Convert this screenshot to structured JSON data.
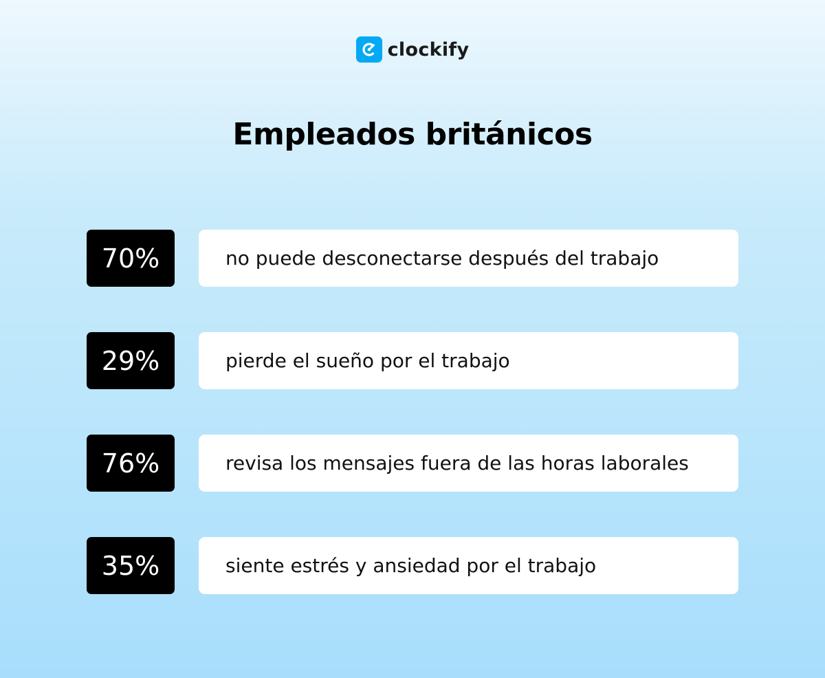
{
  "brand": {
    "name": "clockify",
    "color": "#03a9f4"
  },
  "headline": "Empleados británicos",
  "stats": [
    {
      "value": "70%",
      "text": "no puede desconectarse después del trabajo"
    },
    {
      "value": "29%",
      "text": "pierde el sueño por el trabajo"
    },
    {
      "value": "76%",
      "text": "revisa los mensajes fuera de las horas laborales"
    },
    {
      "value": "35%",
      "text": "siente estrés y ansiedad por el trabajo"
    }
  ]
}
